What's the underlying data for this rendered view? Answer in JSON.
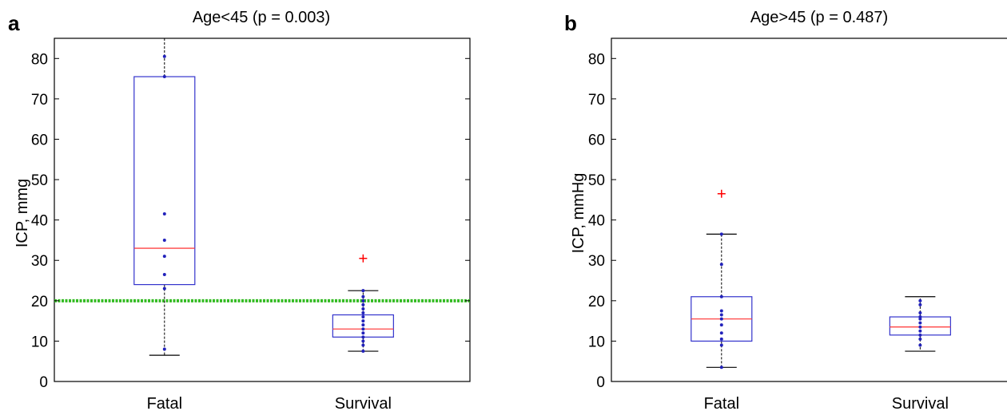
{
  "chart_data": [
    {
      "type": "box",
      "panel": "a",
      "title": "Age<45 (p = 0.003)",
      "xlabel": "",
      "ylabel": "ICP, mmg",
      "ylim": [
        0,
        85
      ],
      "yticks": [
        0,
        10,
        20,
        30,
        40,
        50,
        60,
        70,
        80
      ],
      "categories": [
        "Fatal",
        "Survival"
      ],
      "reference_line": {
        "y": 20,
        "color": "#33bb22",
        "style": "dotted"
      },
      "boxes": [
        {
          "category": "Fatal",
          "whisker_low": 6.5,
          "q1": 24,
          "median": 33,
          "q3": 75.5,
          "whisker_high": 85,
          "outliers": [],
          "points": [
            8,
            23,
            26.5,
            31,
            35,
            41.5,
            75.5,
            80.5
          ]
        },
        {
          "category": "Survival",
          "whisker_low": 7.5,
          "q1": 11,
          "median": 13,
          "q3": 16.5,
          "whisker_high": 22.5,
          "outliers": [
            30.5
          ],
          "points": [
            7.5,
            9,
            10,
            11,
            12,
            13,
            14,
            15,
            16,
            17,
            18,
            19,
            20,
            21,
            22.5
          ]
        }
      ],
      "colors": {
        "box": "#3333cc",
        "median": "#ff4444",
        "outlier": "#ff0000",
        "points": "#2222bb",
        "axis": "#000000"
      }
    },
    {
      "type": "box",
      "panel": "b",
      "title": "Age>45 (p = 0.487)",
      "xlabel": "",
      "ylabel": "ICP, mmHg",
      "ylim": [
        0,
        85
      ],
      "yticks": [
        0,
        10,
        20,
        30,
        40,
        50,
        60,
        70,
        80
      ],
      "categories": [
        "Fatal",
        "Survival"
      ],
      "boxes": [
        {
          "category": "Fatal",
          "whisker_low": 3.5,
          "q1": 10,
          "median": 15.5,
          "q3": 21,
          "whisker_high": 36.5,
          "outliers": [
            46.5
          ],
          "points": [
            3.5,
            9,
            10.5,
            12,
            14,
            15.5,
            16.5,
            17.5,
            21,
            29,
            36.5
          ]
        },
        {
          "category": "Survival",
          "whisker_low": 7.5,
          "q1": 11.5,
          "median": 13.5,
          "q3": 16,
          "whisker_high": 21,
          "outliers": [],
          "points": [
            9,
            10.5,
            11.5,
            12.5,
            13.5,
            14.5,
            15.5,
            16,
            17,
            19,
            20
          ]
        }
      ],
      "colors": {
        "box": "#3333cc",
        "median": "#ff4444",
        "outlier": "#ff0000",
        "points": "#2222bb",
        "axis": "#000000"
      }
    }
  ]
}
